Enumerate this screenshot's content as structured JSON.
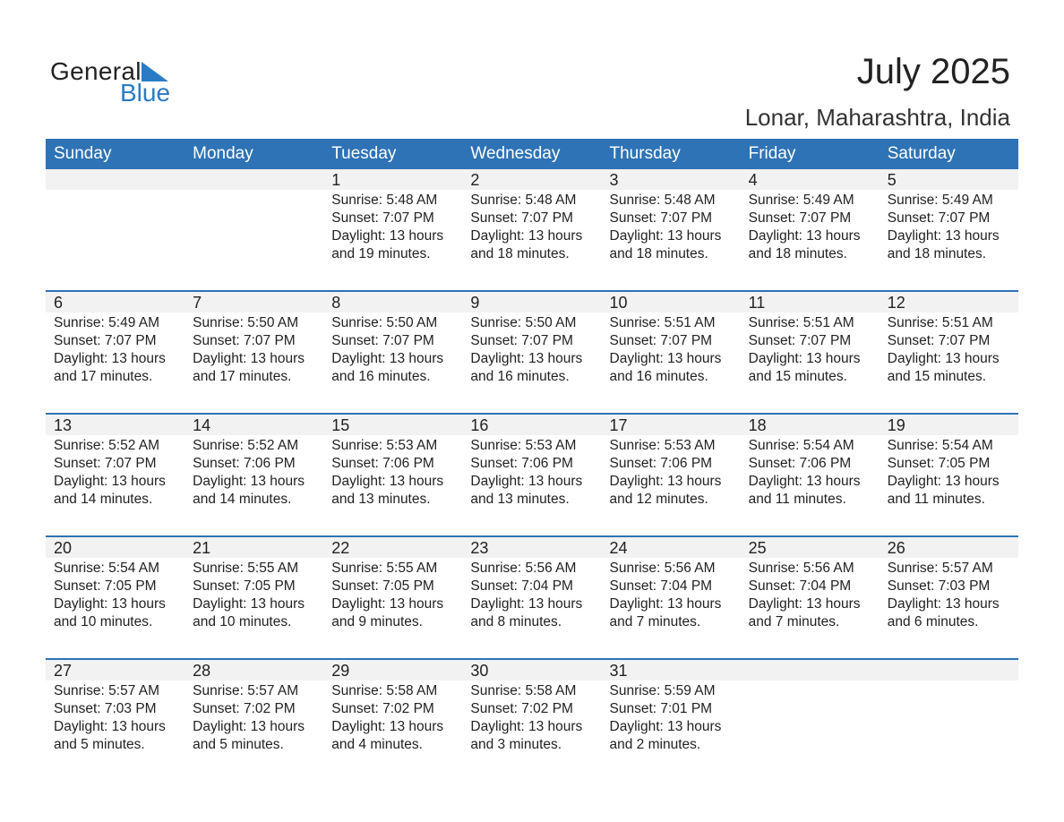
{
  "logo": {
    "text_general": "General",
    "text_blue": "Blue",
    "brand_color": "#2a7bc4"
  },
  "title": "July 2025",
  "location": "Lonar, Maharashtra, India",
  "colors": {
    "header": "#2e73b5",
    "day_band": "#f2f2f2"
  },
  "weekdays": [
    "Sunday",
    "Monday",
    "Tuesday",
    "Wednesday",
    "Thursday",
    "Friday",
    "Saturday"
  ],
  "weeks": [
    [
      null,
      null,
      {
        "day": "1",
        "sunrise": "Sunrise: 5:48 AM",
        "sunset": "Sunset: 7:07 PM",
        "daylight": "Daylight: 13 hours",
        "minutes": "and 19 minutes."
      },
      {
        "day": "2",
        "sunrise": "Sunrise: 5:48 AM",
        "sunset": "Sunset: 7:07 PM",
        "daylight": "Daylight: 13 hours",
        "minutes": "and 18 minutes."
      },
      {
        "day": "3",
        "sunrise": "Sunrise: 5:48 AM",
        "sunset": "Sunset: 7:07 PM",
        "daylight": "Daylight: 13 hours",
        "minutes": "and 18 minutes."
      },
      {
        "day": "4",
        "sunrise": "Sunrise: 5:49 AM",
        "sunset": "Sunset: 7:07 PM",
        "daylight": "Daylight: 13 hours",
        "minutes": "and 18 minutes."
      },
      {
        "day": "5",
        "sunrise": "Sunrise: 5:49 AM",
        "sunset": "Sunset: 7:07 PM",
        "daylight": "Daylight: 13 hours",
        "minutes": "and 18 minutes."
      }
    ],
    [
      {
        "day": "6",
        "sunrise": "Sunrise: 5:49 AM",
        "sunset": "Sunset: 7:07 PM",
        "daylight": "Daylight: 13 hours",
        "minutes": "and 17 minutes."
      },
      {
        "day": "7",
        "sunrise": "Sunrise: 5:50 AM",
        "sunset": "Sunset: 7:07 PM",
        "daylight": "Daylight: 13 hours",
        "minutes": "and 17 minutes."
      },
      {
        "day": "8",
        "sunrise": "Sunrise: 5:50 AM",
        "sunset": "Sunset: 7:07 PM",
        "daylight": "Daylight: 13 hours",
        "minutes": "and 16 minutes."
      },
      {
        "day": "9",
        "sunrise": "Sunrise: 5:50 AM",
        "sunset": "Sunset: 7:07 PM",
        "daylight": "Daylight: 13 hours",
        "minutes": "and 16 minutes."
      },
      {
        "day": "10",
        "sunrise": "Sunrise: 5:51 AM",
        "sunset": "Sunset: 7:07 PM",
        "daylight": "Daylight: 13 hours",
        "minutes": "and 16 minutes."
      },
      {
        "day": "11",
        "sunrise": "Sunrise: 5:51 AM",
        "sunset": "Sunset: 7:07 PM",
        "daylight": "Daylight: 13 hours",
        "minutes": "and 15 minutes."
      },
      {
        "day": "12",
        "sunrise": "Sunrise: 5:51 AM",
        "sunset": "Sunset: 7:07 PM",
        "daylight": "Daylight: 13 hours",
        "minutes": "and 15 minutes."
      }
    ],
    [
      {
        "day": "13",
        "sunrise": "Sunrise: 5:52 AM",
        "sunset": "Sunset: 7:07 PM",
        "daylight": "Daylight: 13 hours",
        "minutes": "and 14 minutes."
      },
      {
        "day": "14",
        "sunrise": "Sunrise: 5:52 AM",
        "sunset": "Sunset: 7:06 PM",
        "daylight": "Daylight: 13 hours",
        "minutes": "and 14 minutes."
      },
      {
        "day": "15",
        "sunrise": "Sunrise: 5:53 AM",
        "sunset": "Sunset: 7:06 PM",
        "daylight": "Daylight: 13 hours",
        "minutes": "and 13 minutes."
      },
      {
        "day": "16",
        "sunrise": "Sunrise: 5:53 AM",
        "sunset": "Sunset: 7:06 PM",
        "daylight": "Daylight: 13 hours",
        "minutes": "and 13 minutes."
      },
      {
        "day": "17",
        "sunrise": "Sunrise: 5:53 AM",
        "sunset": "Sunset: 7:06 PM",
        "daylight": "Daylight: 13 hours",
        "minutes": "and 12 minutes."
      },
      {
        "day": "18",
        "sunrise": "Sunrise: 5:54 AM",
        "sunset": "Sunset: 7:06 PM",
        "daylight": "Daylight: 13 hours",
        "minutes": "and 11 minutes."
      },
      {
        "day": "19",
        "sunrise": "Sunrise: 5:54 AM",
        "sunset": "Sunset: 7:05 PM",
        "daylight": "Daylight: 13 hours",
        "minutes": "and 11 minutes."
      }
    ],
    [
      {
        "day": "20",
        "sunrise": "Sunrise: 5:54 AM",
        "sunset": "Sunset: 7:05 PM",
        "daylight": "Daylight: 13 hours",
        "minutes": "and 10 minutes."
      },
      {
        "day": "21",
        "sunrise": "Sunrise: 5:55 AM",
        "sunset": "Sunset: 7:05 PM",
        "daylight": "Daylight: 13 hours",
        "minutes": "and 10 minutes."
      },
      {
        "day": "22",
        "sunrise": "Sunrise: 5:55 AM",
        "sunset": "Sunset: 7:05 PM",
        "daylight": "Daylight: 13 hours",
        "minutes": "and 9 minutes."
      },
      {
        "day": "23",
        "sunrise": "Sunrise: 5:56 AM",
        "sunset": "Sunset: 7:04 PM",
        "daylight": "Daylight: 13 hours",
        "minutes": "and 8 minutes."
      },
      {
        "day": "24",
        "sunrise": "Sunrise: 5:56 AM",
        "sunset": "Sunset: 7:04 PM",
        "daylight": "Daylight: 13 hours",
        "minutes": "and 7 minutes."
      },
      {
        "day": "25",
        "sunrise": "Sunrise: 5:56 AM",
        "sunset": "Sunset: 7:04 PM",
        "daylight": "Daylight: 13 hours",
        "minutes": "and 7 minutes."
      },
      {
        "day": "26",
        "sunrise": "Sunrise: 5:57 AM",
        "sunset": "Sunset: 7:03 PM",
        "daylight": "Daylight: 13 hours",
        "minutes": "and 6 minutes."
      }
    ],
    [
      {
        "day": "27",
        "sunrise": "Sunrise: 5:57 AM",
        "sunset": "Sunset: 7:03 PM",
        "daylight": "Daylight: 13 hours",
        "minutes": "and 5 minutes."
      },
      {
        "day": "28",
        "sunrise": "Sunrise: 5:57 AM",
        "sunset": "Sunset: 7:02 PM",
        "daylight": "Daylight: 13 hours",
        "minutes": "and 5 minutes."
      },
      {
        "day": "29",
        "sunrise": "Sunrise: 5:58 AM",
        "sunset": "Sunset: 7:02 PM",
        "daylight": "Daylight: 13 hours",
        "minutes": "and 4 minutes."
      },
      {
        "day": "30",
        "sunrise": "Sunrise: 5:58 AM",
        "sunset": "Sunset: 7:02 PM",
        "daylight": "Daylight: 13 hours",
        "minutes": "and 3 minutes."
      },
      {
        "day": "31",
        "sunrise": "Sunrise: 5:59 AM",
        "sunset": "Sunset: 7:01 PM",
        "daylight": "Daylight: 13 hours",
        "minutes": "and 2 minutes."
      },
      null,
      null
    ]
  ]
}
